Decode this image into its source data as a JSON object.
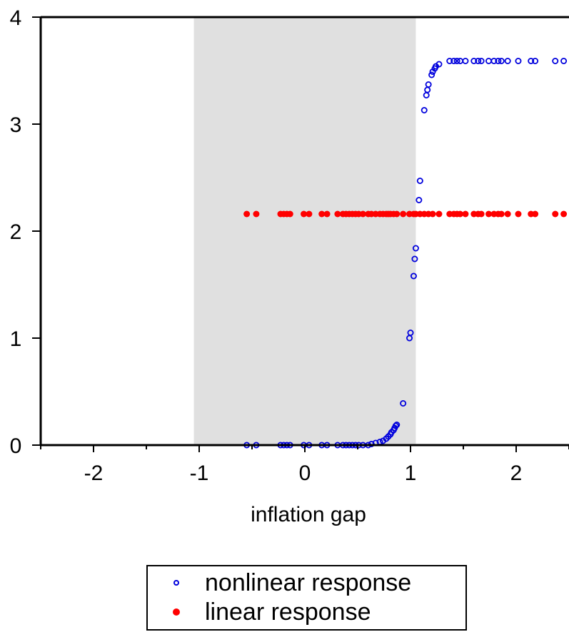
{
  "chart_data": {
    "type": "scatter",
    "title": "",
    "xlabel": "inflation gap",
    "ylabel": "",
    "xlim": [
      -2.5,
      2.5
    ],
    "ylim": [
      0,
      4
    ],
    "x_ticks": [
      "-2",
      "-1",
      "0",
      "1",
      "2"
    ],
    "y_ticks": [
      "0",
      "1",
      "2",
      "3",
      "4"
    ],
    "shaded_region": {
      "x": [
        -1.05,
        1.05
      ],
      "color": "#e0e0e0"
    },
    "legend_position": "bottom-center",
    "grid": false,
    "series": [
      {
        "name": "nonlinear response",
        "marker": "open-circle",
        "color": "#0000dd",
        "points": [
          [
            -0.55,
            0.0
          ],
          [
            -0.46,
            0.0
          ],
          [
            -0.23,
            0.0
          ],
          [
            -0.2,
            0.0
          ],
          [
            -0.17,
            0.0
          ],
          [
            -0.14,
            0.0
          ],
          [
            -0.01,
            0.0
          ],
          [
            0.04,
            0.0
          ],
          [
            0.16,
            0.0
          ],
          [
            0.21,
            0.0
          ],
          [
            0.31,
            0.0
          ],
          [
            0.36,
            0.0
          ],
          [
            0.39,
            0.0
          ],
          [
            0.42,
            0.0
          ],
          [
            0.45,
            0.0
          ],
          [
            0.48,
            0.0
          ],
          [
            0.51,
            0.0
          ],
          [
            0.55,
            0.0
          ],
          [
            0.6,
            0.0
          ],
          [
            0.63,
            0.01
          ],
          [
            0.67,
            0.02
          ],
          [
            0.71,
            0.03
          ],
          [
            0.74,
            0.04
          ],
          [
            0.77,
            0.06
          ],
          [
            0.79,
            0.08
          ],
          [
            0.81,
            0.1
          ],
          [
            0.82,
            0.12
          ],
          [
            0.84,
            0.14
          ],
          [
            0.85,
            0.16
          ],
          [
            0.86,
            0.18
          ],
          [
            0.87,
            0.19
          ],
          [
            0.93,
            0.39
          ],
          [
            0.99,
            1.0
          ],
          [
            1.0,
            1.05
          ],
          [
            1.03,
            1.58
          ],
          [
            1.04,
            1.74
          ],
          [
            1.05,
            1.84
          ],
          [
            1.08,
            2.29
          ],
          [
            1.09,
            2.47
          ],
          [
            1.13,
            3.13
          ],
          [
            1.15,
            3.27
          ],
          [
            1.16,
            3.32
          ],
          [
            1.17,
            3.37
          ],
          [
            1.2,
            3.46
          ],
          [
            1.21,
            3.49
          ],
          [
            1.23,
            3.52
          ],
          [
            1.24,
            3.54
          ],
          [
            1.27,
            3.56
          ],
          [
            1.37,
            3.59
          ],
          [
            1.41,
            3.59
          ],
          [
            1.44,
            3.59
          ],
          [
            1.47,
            3.59
          ],
          [
            1.52,
            3.59
          ],
          [
            1.6,
            3.59
          ],
          [
            1.64,
            3.59
          ],
          [
            1.67,
            3.59
          ],
          [
            1.74,
            3.59
          ],
          [
            1.79,
            3.59
          ],
          [
            1.83,
            3.59
          ],
          [
            1.86,
            3.59
          ],
          [
            1.92,
            3.59
          ],
          [
            2.02,
            3.59
          ],
          [
            2.14,
            3.59
          ],
          [
            2.18,
            3.59
          ],
          [
            2.37,
            3.59
          ],
          [
            2.45,
            3.59
          ]
        ]
      },
      {
        "name": "linear response",
        "marker": "filled-circle",
        "color": "#ff0000",
        "points": [
          [
            -0.55,
            2.16
          ],
          [
            -0.46,
            2.16
          ],
          [
            -0.23,
            2.16
          ],
          [
            -0.2,
            2.16
          ],
          [
            -0.17,
            2.16
          ],
          [
            -0.14,
            2.16
          ],
          [
            -0.01,
            2.16
          ],
          [
            0.04,
            2.16
          ],
          [
            0.16,
            2.16
          ],
          [
            0.21,
            2.16
          ],
          [
            0.31,
            2.16
          ],
          [
            0.36,
            2.16
          ],
          [
            0.39,
            2.16
          ],
          [
            0.42,
            2.16
          ],
          [
            0.45,
            2.16
          ],
          [
            0.48,
            2.16
          ],
          [
            0.51,
            2.16
          ],
          [
            0.55,
            2.16
          ],
          [
            0.6,
            2.16
          ],
          [
            0.63,
            2.16
          ],
          [
            0.67,
            2.16
          ],
          [
            0.71,
            2.16
          ],
          [
            0.74,
            2.16
          ],
          [
            0.77,
            2.16
          ],
          [
            0.79,
            2.16
          ],
          [
            0.81,
            2.16
          ],
          [
            0.84,
            2.16
          ],
          [
            0.87,
            2.16
          ],
          [
            0.93,
            2.16
          ],
          [
            0.99,
            2.16
          ],
          [
            1.03,
            2.16
          ],
          [
            1.05,
            2.16
          ],
          [
            1.09,
            2.16
          ],
          [
            1.13,
            2.16
          ],
          [
            1.17,
            2.16
          ],
          [
            1.21,
            2.16
          ],
          [
            1.27,
            2.16
          ],
          [
            1.37,
            2.16
          ],
          [
            1.41,
            2.16
          ],
          [
            1.44,
            2.16
          ],
          [
            1.47,
            2.16
          ],
          [
            1.52,
            2.16
          ],
          [
            1.6,
            2.16
          ],
          [
            1.64,
            2.16
          ],
          [
            1.67,
            2.16
          ],
          [
            1.74,
            2.16
          ],
          [
            1.79,
            2.16
          ],
          [
            1.83,
            2.16
          ],
          [
            1.86,
            2.16
          ],
          [
            1.92,
            2.16
          ],
          [
            2.02,
            2.16
          ],
          [
            2.14,
            2.16
          ],
          [
            2.18,
            2.16
          ],
          [
            2.37,
            2.16
          ],
          [
            2.45,
            2.16
          ]
        ]
      }
    ]
  }
}
